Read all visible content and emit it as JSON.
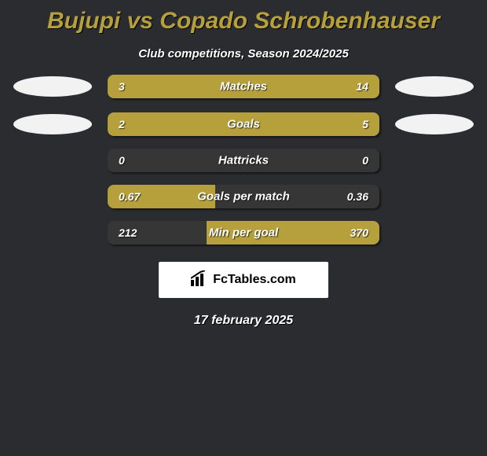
{
  "colors": {
    "background": "#2a2c2f",
    "accent": "#b6a03c",
    "bar_track": "#363636",
    "ellipse": "#f2f2f2",
    "text": "#ffffff",
    "brand_bg": "#ffffff",
    "brand_text": "#000000"
  },
  "title": "Bujupi vs Copado Schrobenhauser",
  "subtitle": "Club competitions, Season 2024/2025",
  "date": "17 february 2025",
  "brand": {
    "name": "FcTables.com"
  },
  "bars": [
    {
      "label": "Matches",
      "left_val": "3",
      "right_val": "14",
      "left_pct": 18,
      "right_pct": 82,
      "show_ellipses": true
    },
    {
      "label": "Goals",
      "left_val": "2",
      "right_val": "5",
      "left_pct": 29,
      "right_pct": 71,
      "show_ellipses": true
    },
    {
      "label": "Hattricks",
      "left_val": "0",
      "right_val": "0",
      "left_pct": 0,
      "right_pct": 0,
      "show_ellipses": false
    },
    {
      "label": "Goals per match",
      "left_val": "0.67",
      "right_val": "0.36",
      "left_pct": 39.5,
      "right_pct": 0,
      "show_ellipses": false
    },
    {
      "label": "Min per goal",
      "left_val": "212",
      "right_val": "370",
      "left_pct": 0,
      "right_pct": 63.6,
      "show_ellipses": false
    }
  ]
}
